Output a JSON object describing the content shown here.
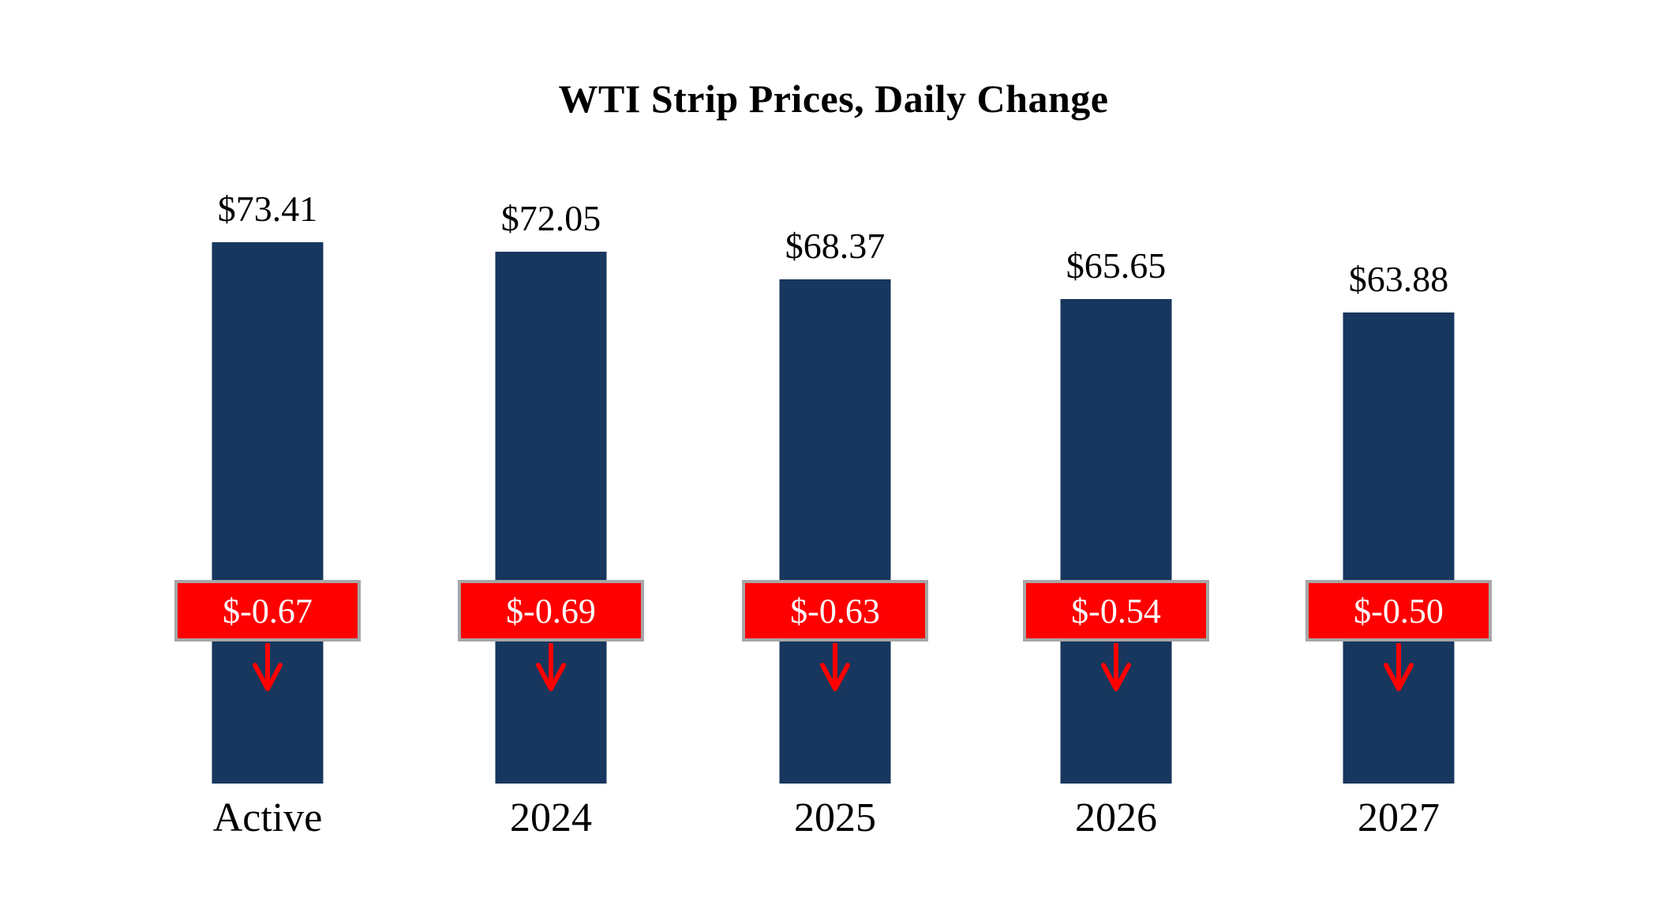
{
  "chart_data": {
    "type": "bar",
    "title": "WTI Strip Prices, Daily Change",
    "categories": [
      "Active",
      "2024",
      "2025",
      "2026",
      "2027"
    ],
    "series": [
      {
        "name": "Strip Price",
        "values": [
          73.41,
          72.05,
          68.37,
          65.65,
          63.88
        ],
        "labels": [
          "$73.41",
          "$72.05",
          "$68.37",
          "$65.65",
          "$63.88"
        ]
      },
      {
        "name": "Daily Change",
        "values": [
          -0.67,
          -0.69,
          -0.63,
          -0.54,
          -0.5
        ],
        "labels": [
          "$-0.67",
          "$-0.69",
          "$-0.63",
          "$-0.54",
          "$-0.50"
        ]
      }
    ],
    "ylim": [
      0,
      80
    ],
    "grid": false,
    "legend": "none",
    "colors": {
      "bar": "#17375E",
      "change_fill": "#FF0000",
      "change_border": "#A6A6A6",
      "change_text": "#FFFFFF",
      "label_text": "#000000",
      "background": "#FFFFFF"
    }
  }
}
